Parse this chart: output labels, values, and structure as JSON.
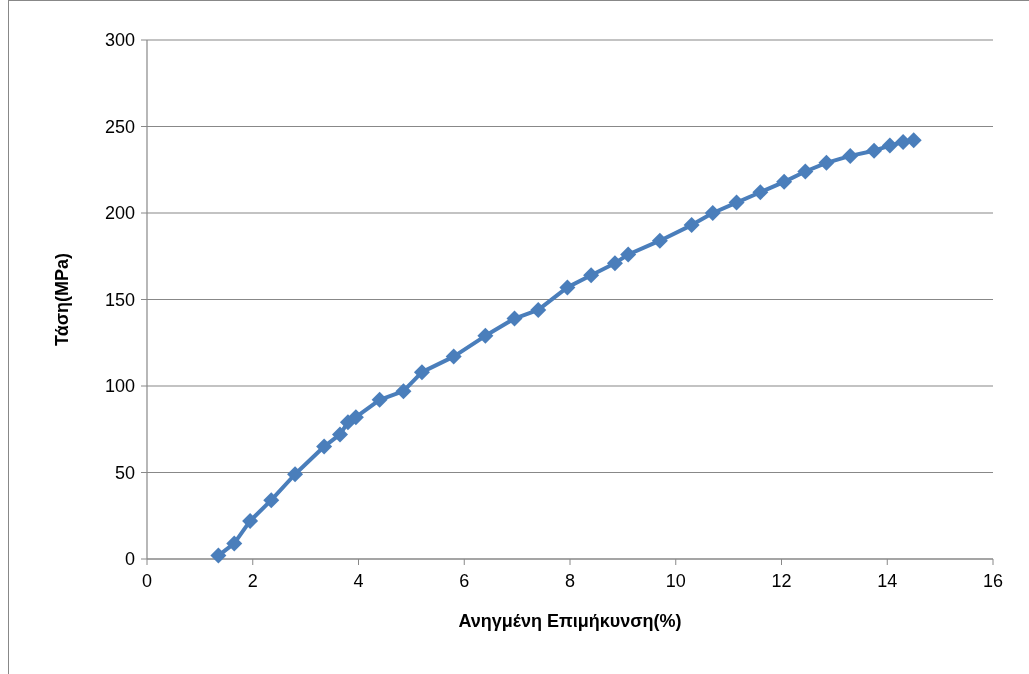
{
  "chart_data": {
    "type": "line",
    "xlabel": "Ανηγμένη Επιμήκυνση(%)",
    "ylabel": "Τάση(MPa)",
    "xlim": [
      0,
      16
    ],
    "xticks": [
      0,
      2,
      4,
      6,
      8,
      10,
      12,
      14,
      16
    ],
    "ylim": [
      0,
      300
    ],
    "yticks": [
      0,
      50,
      100,
      150,
      200,
      250,
      300
    ],
    "grid": "y",
    "marker": "diamond",
    "line_style": "solid",
    "series": [
      {
        "color": "#4a7ebb",
        "x": [
          1.35,
          1.65,
          1.95,
          2.35,
          2.8,
          3.35,
          3.65,
          3.8,
          3.95,
          4.4,
          4.85,
          5.2,
          5.8,
          6.4,
          6.95,
          7.4,
          7.95,
          8.4,
          8.85,
          9.1,
          9.7,
          10.3,
          10.7,
          11.15,
          11.6,
          12.05,
          12.45,
          12.85,
          13.3,
          13.75,
          14.05,
          14.3,
          14.5
        ],
        "values": [
          2,
          9,
          22,
          34,
          49,
          65,
          72,
          79,
          82,
          92,
          97,
          108,
          117,
          129,
          139,
          144,
          157,
          164,
          171,
          176,
          184,
          193,
          200,
          206,
          212,
          218,
          224,
          229,
          233,
          236,
          239,
          241,
          242
        ]
      }
    ]
  }
}
